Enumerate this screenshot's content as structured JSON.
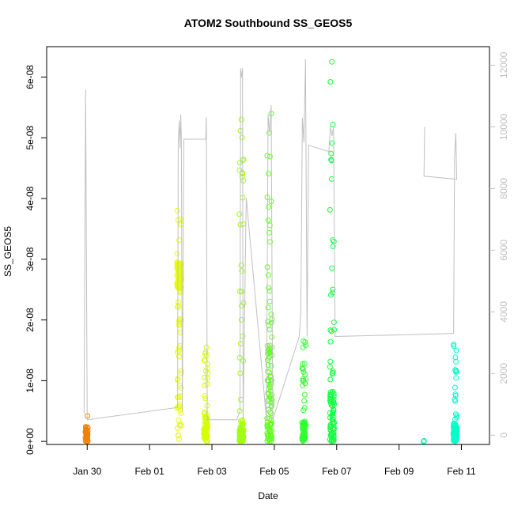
{
  "chart_data": {
    "type": "scatter",
    "title": "ATOM2 Southbound SS_GEOS5",
    "xlabel": "Date",
    "ylabel": "SS_GEOS5",
    "x_ticks": [
      "Jan 30",
      "Feb 01",
      "Feb 03",
      "Feb 05",
      "Feb 07",
      "Feb 09",
      "Feb 11"
    ],
    "x_range": [
      "Jan 28 19:00",
      "Feb 11 20:00"
    ],
    "y_ticks": [
      "0e+00",
      "1e-08",
      "2e-08",
      "3e-08",
      "4e-08",
      "5e-08",
      "6e-08"
    ],
    "ylim": [
      -5e-10,
      6.5e-08
    ],
    "y2_ticks": [
      "0",
      "2000",
      "4000",
      "6000",
      "8000",
      "10000",
      "12000"
    ],
    "y2lim": [
      -300,
      12600
    ],
    "y2_color": "#c0c0c0",
    "clusters": [
      {
        "day": 1.08,
        "width": 0.08,
        "color": "#f08000",
        "min": 0.0,
        "max": 4.2e-09,
        "dense_min": 0.0,
        "dense_max": 2.2e-09,
        "n": 40
      },
      {
        "day": 4.05,
        "width": 0.14,
        "color": "#e6ff00",
        "min": 0.0,
        "max": 3.8e-08,
        "dense_min": 2.5e-08,
        "dense_max": 2.95e-08,
        "n": 120
      },
      {
        "day": 4.9,
        "width": 0.12,
        "color": "#d4ff00",
        "min": 0.0,
        "max": 1.55e-08,
        "dense_min": 0.0,
        "dense_max": 4e-09,
        "n": 70
      },
      {
        "day": 6.05,
        "width": 0.14,
        "color": "#a0ff10",
        "min": 0.0,
        "max": 5.3e-08,
        "dense_min": 0.0,
        "dense_max": 3e-09,
        "n": 90
      },
      {
        "day": 6.95,
        "width": 0.16,
        "color": "#60ff20",
        "min": 0.0,
        "max": 5.4e-08,
        "dense_min": 0.0,
        "dense_max": 1.6e-08,
        "n": 110
      },
      {
        "day": 8.05,
        "width": 0.12,
        "color": "#30ff30",
        "min": 0.0,
        "max": 1.65e-08,
        "dense_min": 0.0,
        "dense_max": 3e-09,
        "n": 70
      },
      {
        "day": 8.95,
        "width": 0.14,
        "color": "#10ff40",
        "min": 0.0,
        "max": 6.25e-08,
        "dense_min": 0.0,
        "dense_max": 8e-09,
        "n": 90
      },
      {
        "day": 11.9,
        "width": 0.03,
        "color": "#00ffa0",
        "min": 0.0,
        "max": 1e-10,
        "dense_min": 0.0,
        "dense_max": 1e-10,
        "n": 4
      },
      {
        "day": 12.9,
        "width": 0.12,
        "color": "#00ffc8",
        "min": 0.0,
        "max": 1.6e-08,
        "dense_min": 0.0,
        "dense_max": 3e-09,
        "n": 80
      }
    ],
    "altitude_line": {
      "color": "#c0c0c0",
      "points": [
        [
          1.0,
          700
        ],
        [
          1.05,
          11200
        ],
        [
          1.1,
          500
        ],
        [
          4.0,
          900
        ],
        [
          4.02,
          9500
        ],
        [
          4.05,
          10200
        ],
        [
          4.08,
          9300
        ],
        [
          4.1,
          10400
        ],
        [
          4.12,
          9600
        ],
        [
          4.15,
          800
        ],
        [
          4.2,
          9600
        ],
        [
          4.9,
          9600
        ],
        [
          4.92,
          10300
        ],
        [
          4.95,
          500
        ],
        [
          5.9,
          500
        ],
        [
          6.0,
          800
        ],
        [
          6.02,
          11900
        ],
        [
          6.05,
          11600
        ],
        [
          6.08,
          11900
        ],
        [
          6.1,
          500
        ],
        [
          6.2,
          7700
        ],
        [
          6.85,
          500
        ],
        [
          6.9,
          10400
        ],
        [
          6.95,
          9800
        ],
        [
          7.0,
          10700
        ],
        [
          7.05,
          500
        ],
        [
          7.9,
          3200
        ],
        [
          7.95,
          4000
        ],
        [
          8.0,
          10300
        ],
        [
          8.05,
          9500
        ],
        [
          8.1,
          12200
        ],
        [
          8.15,
          3200
        ],
        [
          8.2,
          9400
        ],
        [
          8.85,
          9200
        ],
        [
          8.9,
          10000
        ],
        [
          8.95,
          9700
        ],
        [
          9.0,
          10000
        ],
        [
          9.05,
          3200
        ],
        [
          12.85,
          3300
        ],
        [
          12.88,
          9000
        ],
        [
          12.92,
          9800
        ],
        [
          12.95,
          8300
        ],
        [
          11.9,
          8400
        ],
        [
          11.92,
          10000
        ]
      ]
    }
  }
}
